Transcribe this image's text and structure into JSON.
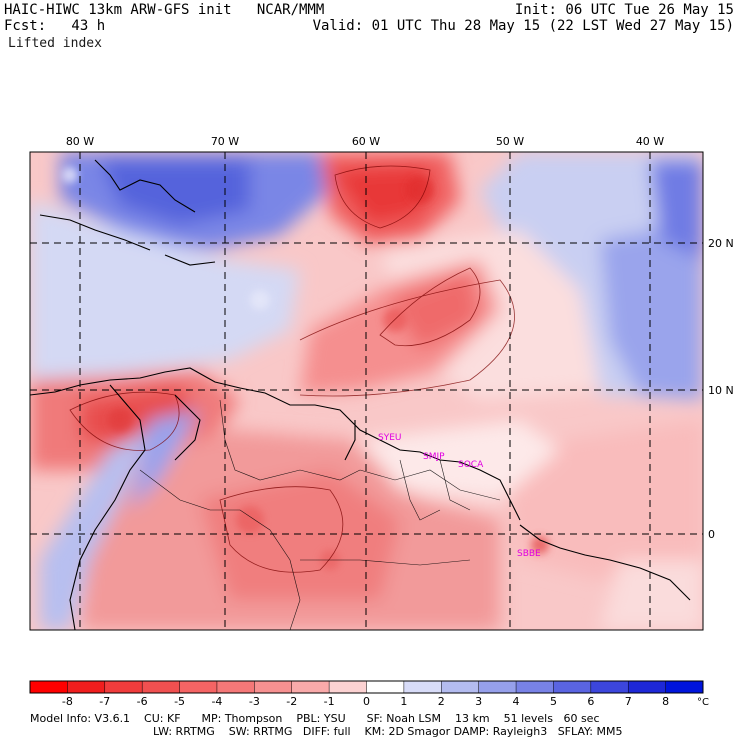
{
  "header": {
    "model_line": "HAIC-HIWC 13km ARW-GFS init   NCAR/MMM",
    "init": "Init: 06 UTC Tue 26 May 15",
    "fcst": "Fcst:   43 h",
    "valid": "Valid: 01 UTC Thu 28 May 15 (22 LST Wed 27 May 15)",
    "field": "Lifted index"
  },
  "map": {
    "lon_labels": [
      "80 W",
      "70 W",
      "60 W",
      "50 W",
      "40 W"
    ],
    "lat_labels": [
      "20 N",
      "10 N",
      "0"
    ],
    "stations": [
      "SYEU",
      "SMJP",
      "SOCA",
      "SBBE"
    ],
    "colors": {
      "negative_strong": "#e8282d",
      "negative_light": "#f7c2c2",
      "positive_light": "#cfd5f3",
      "positive_strong": "#2a3fe0",
      "station": "#e000e0"
    }
  },
  "colorbar": {
    "tick_labels": [
      "-8",
      "-7",
      "-6",
      "-5",
      "-4",
      "-3",
      "-2",
      "-1",
      "0",
      "1",
      "2",
      "3",
      "4",
      "5",
      "6",
      "7",
      "8"
    ],
    "unit": "°C",
    "colors": [
      "#ff0000",
      "#f01e1e",
      "#f03c3c",
      "#f05050",
      "#f56464",
      "#f57878",
      "#f79191",
      "#f9aaaa",
      "#fcd2d2",
      "#ffffff",
      "#d8dcf8",
      "#b4bcf0",
      "#96a0eb",
      "#7882e6",
      "#5a64e1",
      "#3c46dc",
      "#1e28d7",
      "#0014dc"
    ]
  },
  "footer": {
    "line1": "Model Info: V3.6.1    CU: KF      MP: Thompson    PBL: YSU      SF: Noah LSM    13 km    51 levels   60 sec",
    "line2": "LW: RRTMG    SW: RRTMG   DIFF: full    KM: 2D Smagor DAMP: Rayleigh3   SFLAY: MM5"
  }
}
